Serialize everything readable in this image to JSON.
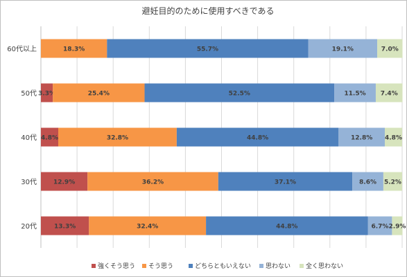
{
  "chart_data": {
    "type": "bar",
    "orientation": "horizontal",
    "stacked": true,
    "normalized": true,
    "title": "避妊目的のために使用すべきである",
    "categories": [
      "60代以上",
      "50代",
      "40代",
      "30代",
      "20代"
    ],
    "series": [
      {
        "name": "強くそう思う",
        "color": "#c0504d",
        "values": [
          0,
          3.3,
          4.8,
          12.9,
          13.3
        ],
        "labels": [
          "",
          "3.3%",
          "4.8%",
          "12.9%",
          "13.3%"
        ]
      },
      {
        "name": "そう思う",
        "color": "#f79646",
        "values": [
          18.3,
          25.4,
          32.8,
          36.2,
          32.4
        ],
        "labels": [
          "18.3%",
          "25.4%",
          "32.8%",
          "36.2%",
          "32.4%"
        ]
      },
      {
        "name": "どちらともいえない",
        "color": "#4f81bd",
        "values": [
          55.7,
          52.5,
          44.8,
          37.1,
          44.8
        ],
        "labels": [
          "55.7%",
          "52.5%",
          "44.8%",
          "37.1%",
          "44.8%"
        ]
      },
      {
        "name": "思わない",
        "color": "#95b3d7",
        "values": [
          19.1,
          11.5,
          12.8,
          8.6,
          6.7
        ],
        "labels": [
          "19.1%",
          "11.5%",
          "12.8%",
          "8.6%",
          "6.7%"
        ]
      },
      {
        "name": "全く思わない",
        "color": "#d7e4bd",
        "values": [
          7.0,
          7.4,
          4.8,
          5.2,
          2.9
        ],
        "labels": [
          "7.0%",
          "7.4%",
          "4.8%",
          "5.2%",
          "2.9%"
        ]
      }
    ],
    "xlim": [
      0,
      100
    ],
    "grid": true,
    "legend_position": "bottom"
  }
}
